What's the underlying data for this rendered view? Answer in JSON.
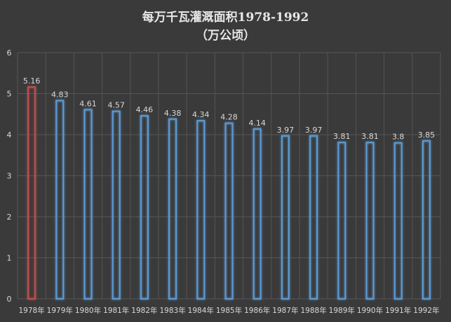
{
  "chart_data": {
    "type": "bar",
    "title_line1": "每万千瓦灌溉面积1978-1992",
    "title_line2": "（万公顷）",
    "categories": [
      "1978年",
      "1979年",
      "1980年",
      "1981年",
      "1982年",
      "1983年",
      "1984年",
      "1985年",
      "1986年",
      "1987年",
      "1988年",
      "1989年",
      "1990年",
      "1991年",
      "1992年"
    ],
    "values": [
      5.16,
      4.83,
      4.61,
      4.57,
      4.46,
      4.38,
      4.34,
      4.28,
      4.14,
      3.97,
      3.97,
      3.81,
      3.81,
      3.8,
      3.85
    ],
    "data_labels": [
      "5.16",
      "4.83",
      "4.61",
      "4.57",
      "4.46",
      "4.38",
      "4.34",
      "4.28",
      "4.14",
      "3.97",
      "3.97",
      "3.81",
      "3.81",
      "3.8",
      "3.85"
    ],
    "y_ticks": [
      "0",
      "1",
      "2",
      "3",
      "4",
      "5",
      "6"
    ],
    "ylim": [
      0,
      6
    ],
    "xlabel": "",
    "ylabel": "",
    "grid": true,
    "legend": "none",
    "highlight_index": 0,
    "colors": {
      "background": "#3a3a3a",
      "grid": "#555555",
      "bar": "#5b9bd5",
      "highlight": "#c0504d",
      "text": "#d9d9d9"
    }
  }
}
